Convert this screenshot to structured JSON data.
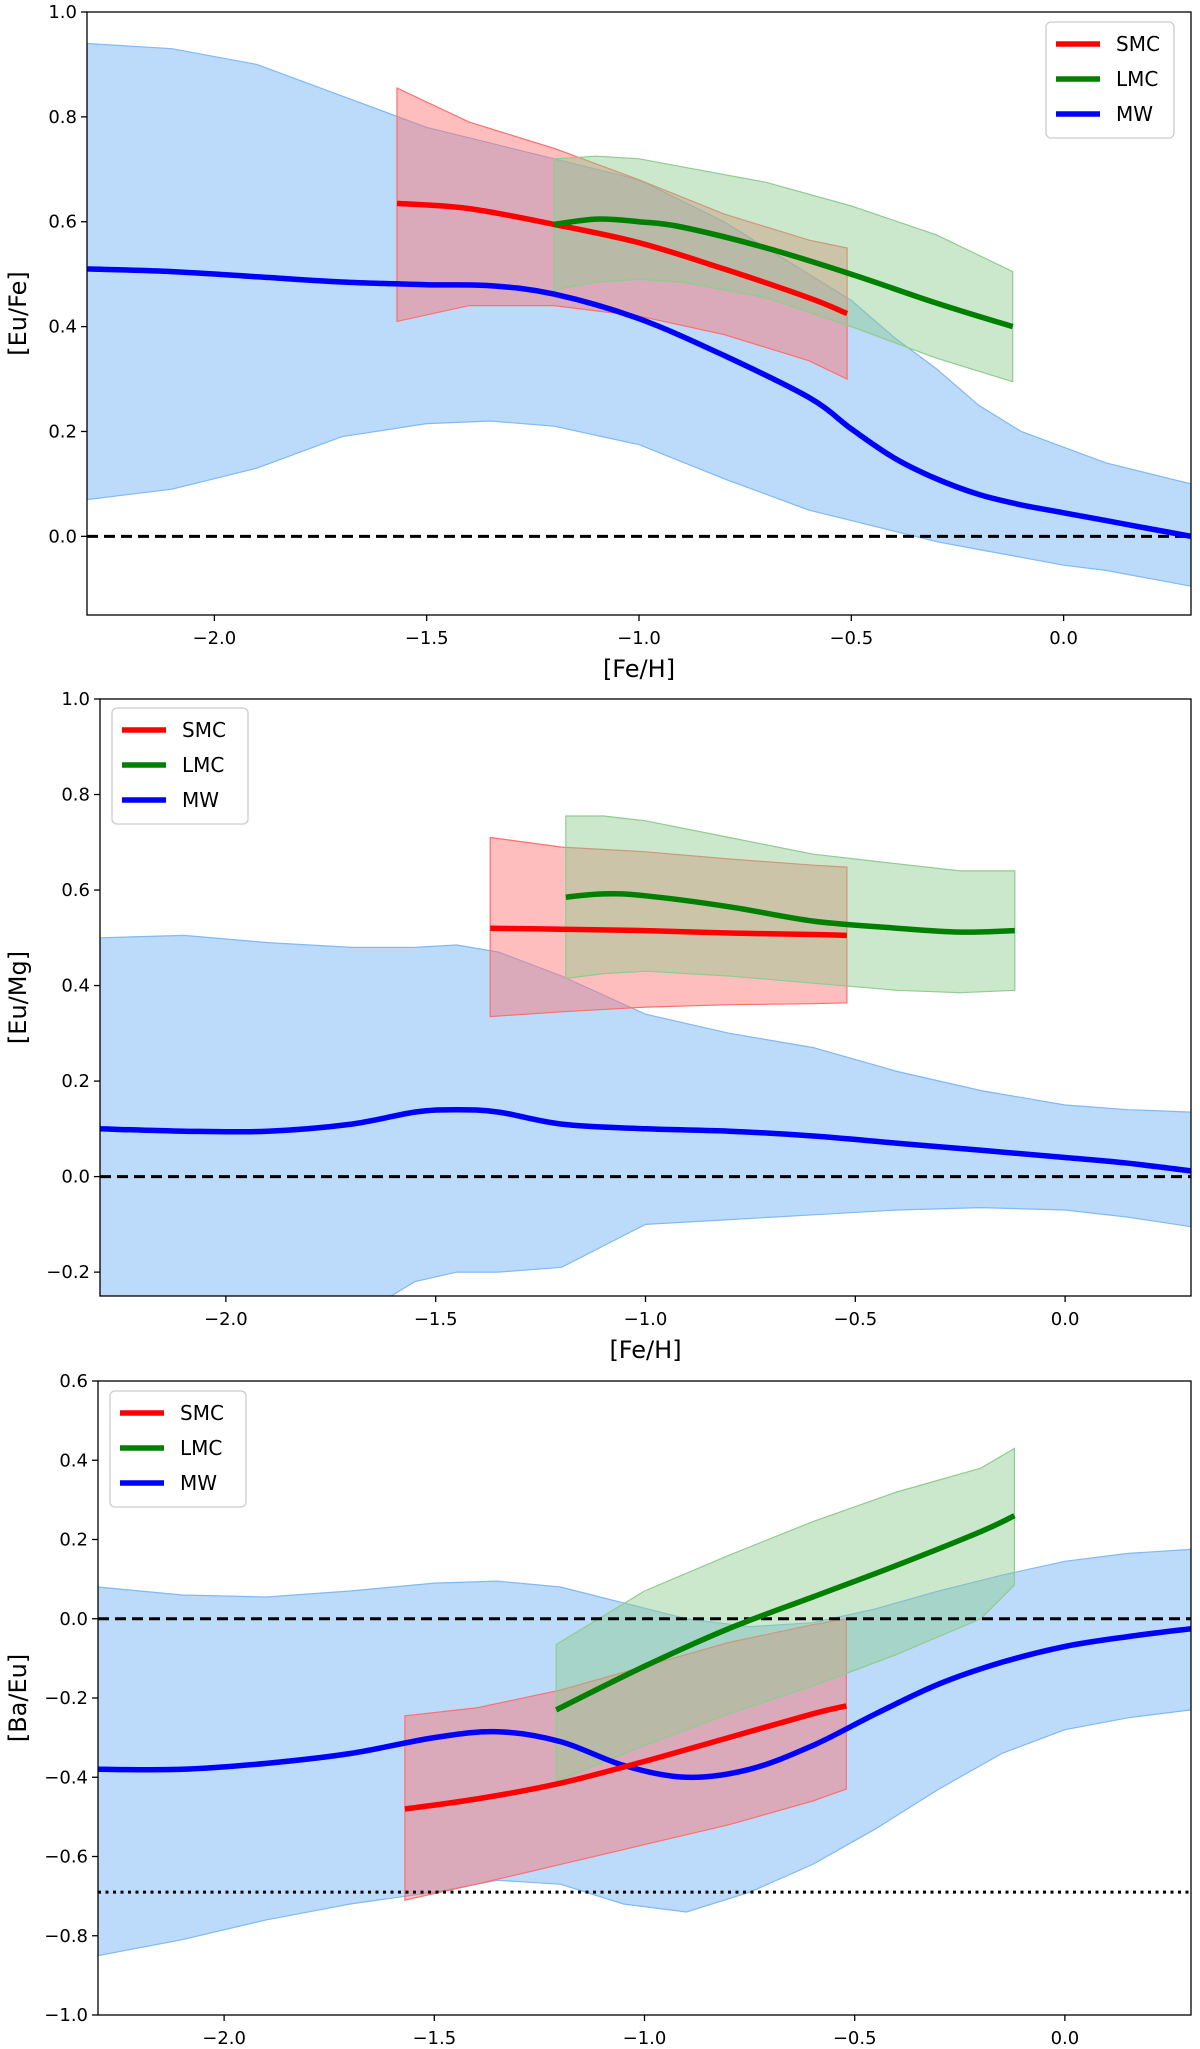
{
  "chart_data": [
    {
      "type": "line",
      "xlabel": "[Fe/H]",
      "ylabel": "[Eu/Fe]",
      "xlim": [
        -2.3,
        0.3
      ],
      "ylim": [
        -0.15,
        1.0
      ],
      "xticks": [
        -2.0,
        -1.5,
        -1.0,
        -0.5,
        0.0
      ],
      "xtick_labels": [
        "−2.0",
        "−1.5",
        "−1.0",
        "−0.5",
        "0.0"
      ],
      "yticks": [
        0.0,
        0.2,
        0.4,
        0.6,
        0.8,
        1.0
      ],
      "ytick_labels": [
        "0.0",
        "0.2",
        "0.4",
        "0.6",
        "0.8",
        "1.0"
      ],
      "legend": {
        "placement": "top-right",
        "entries": [
          "SMC",
          "LMC",
          "MW"
        ]
      },
      "reference_lines": [
        {
          "y": 0.0,
          "style": "dashed"
        }
      ],
      "series": [
        {
          "name": "MW",
          "color": "#0000ff",
          "band_color": "#7fb9f6",
          "x": [
            -2.3,
            -2.1,
            -1.9,
            -1.7,
            -1.5,
            -1.35,
            -1.2,
            -1.0,
            -0.8,
            -0.6,
            -0.5,
            -0.4,
            -0.3,
            -0.2,
            -0.1,
            0.0,
            0.1,
            0.2,
            0.3
          ],
          "y": [
            0.51,
            0.505,
            0.495,
            0.485,
            0.48,
            0.478,
            0.462,
            0.415,
            0.345,
            0.265,
            0.205,
            0.15,
            0.11,
            0.08,
            0.06,
            0.045,
            0.03,
            0.015,
            0.0
          ],
          "lower": [
            0.07,
            0.09,
            0.13,
            0.19,
            0.215,
            0.22,
            0.21,
            0.175,
            0.11,
            0.05,
            0.03,
            0.01,
            -0.01,
            -0.025,
            -0.04,
            -0.055,
            -0.065,
            -0.08,
            -0.095
          ],
          "upper": [
            0.94,
            0.93,
            0.9,
            0.84,
            0.78,
            0.75,
            0.72,
            0.68,
            0.6,
            0.5,
            0.45,
            0.38,
            0.32,
            0.25,
            0.2,
            0.17,
            0.14,
            0.12,
            0.1
          ]
        },
        {
          "name": "SMC",
          "color": "#ff0000",
          "band_color": "#ff6e6e",
          "x": [
            -1.57,
            -1.4,
            -1.2,
            -1.0,
            -0.8,
            -0.6,
            -0.51
          ],
          "y": [
            0.635,
            0.625,
            0.595,
            0.56,
            0.51,
            0.455,
            0.425
          ],
          "lower": [
            0.41,
            0.44,
            0.44,
            0.42,
            0.385,
            0.335,
            0.3
          ],
          "upper": [
            0.855,
            0.79,
            0.74,
            0.68,
            0.615,
            0.565,
            0.55
          ]
        },
        {
          "name": "LMC",
          "color": "#007f00",
          "band_color": "#8fcc8f",
          "x": [
            -1.2,
            -1.1,
            -1.0,
            -0.9,
            -0.7,
            -0.5,
            -0.3,
            -0.12
          ],
          "y": [
            0.595,
            0.605,
            0.6,
            0.59,
            0.55,
            0.5,
            0.445,
            0.4
          ],
          "lower": [
            0.47,
            0.485,
            0.49,
            0.485,
            0.455,
            0.4,
            0.34,
            0.295
          ],
          "upper": [
            0.72,
            0.725,
            0.72,
            0.705,
            0.675,
            0.63,
            0.575,
            0.505
          ]
        }
      ]
    },
    {
      "type": "line",
      "xlabel": "[Fe/H]",
      "ylabel": "[Eu/Mg]",
      "xlim": [
        -2.3,
        0.3
      ],
      "ylim": [
        -0.25,
        1.0
      ],
      "xticks": [
        -2.0,
        -1.5,
        -1.0,
        -0.5,
        0.0
      ],
      "xtick_labels": [
        "−2.0",
        "−1.5",
        "−1.0",
        "−0.5",
        "0.0"
      ],
      "yticks": [
        -0.2,
        0.0,
        0.2,
        0.4,
        0.6,
        0.8,
        1.0
      ],
      "ytick_labels": [
        "−0.2",
        "0.0",
        "0.2",
        "0.4",
        "0.6",
        "0.8",
        "1.0"
      ],
      "legend": {
        "placement": "top-left",
        "entries": [
          "SMC",
          "LMC",
          "MW"
        ]
      },
      "reference_lines": [
        {
          "y": 0.0,
          "style": "dashed"
        }
      ],
      "series": [
        {
          "name": "MW",
          "color": "#0000ff",
          "band_color": "#7fb9f6",
          "x": [
            -2.3,
            -2.1,
            -1.9,
            -1.7,
            -1.55,
            -1.45,
            -1.35,
            -1.2,
            -1.0,
            -0.8,
            -0.6,
            -0.4,
            -0.2,
            0.0,
            0.15,
            0.3
          ],
          "y": [
            0.1,
            0.095,
            0.095,
            0.11,
            0.135,
            0.14,
            0.135,
            0.11,
            0.1,
            0.095,
            0.085,
            0.07,
            0.055,
            0.04,
            0.028,
            0.012
          ],
          "lower": [
            -0.3,
            -0.32,
            -0.32,
            -0.3,
            -0.22,
            -0.2,
            -0.2,
            -0.19,
            -0.1,
            -0.09,
            -0.08,
            -0.07,
            -0.065,
            -0.07,
            -0.085,
            -0.105
          ],
          "upper": [
            0.5,
            0.505,
            0.49,
            0.48,
            0.48,
            0.485,
            0.47,
            0.42,
            0.34,
            0.3,
            0.27,
            0.22,
            0.18,
            0.15,
            0.14,
            0.135
          ]
        },
        {
          "name": "SMC",
          "color": "#ff0000",
          "band_color": "#ff6e6e",
          "x": [
            -1.37,
            -1.2,
            -1.0,
            -0.8,
            -0.6,
            -0.52
          ],
          "y": [
            0.52,
            0.518,
            0.515,
            0.51,
            0.507,
            0.505
          ],
          "lower": [
            0.335,
            0.345,
            0.355,
            0.36,
            0.362,
            0.364
          ],
          "upper": [
            0.71,
            0.69,
            0.68,
            0.665,
            0.652,
            0.648
          ]
        },
        {
          "name": "LMC",
          "color": "#007f00",
          "band_color": "#8fcc8f",
          "x": [
            -1.19,
            -1.1,
            -1.0,
            -0.8,
            -0.6,
            -0.4,
            -0.25,
            -0.12
          ],
          "y": [
            0.585,
            0.592,
            0.588,
            0.565,
            0.535,
            0.52,
            0.512,
            0.515
          ],
          "lower": [
            0.415,
            0.425,
            0.43,
            0.42,
            0.405,
            0.39,
            0.385,
            0.39
          ],
          "upper": [
            0.755,
            0.755,
            0.745,
            0.71,
            0.675,
            0.655,
            0.64,
            0.64
          ]
        }
      ]
    },
    {
      "type": "line",
      "xlabel": "[Fe/H]",
      "ylabel": "[Ba/Eu]",
      "xlim": [
        -2.3,
        0.3
      ],
      "ylim": [
        -1.0,
        0.6
      ],
      "xticks": [
        -2.0,
        -1.5,
        -1.0,
        -0.5,
        0.0
      ],
      "xtick_labels": [
        "−2.0",
        "−1.5",
        "−1.0",
        "−0.5",
        "0.0"
      ],
      "yticks": [
        -1.0,
        -0.8,
        -0.6,
        -0.4,
        -0.2,
        0.0,
        0.2,
        0.4,
        0.6
      ],
      "ytick_labels": [
        "−1.0",
        "−0.8",
        "−0.6",
        "−0.4",
        "−0.2",
        "0.0",
        "0.2",
        "0.4",
        "0.6"
      ],
      "legend": {
        "placement": "top-left",
        "entries": [
          "SMC",
          "LMC",
          "MW"
        ]
      },
      "reference_lines": [
        {
          "y": 0.0,
          "style": "dashed"
        },
        {
          "y": -0.69,
          "style": "dotted"
        }
      ],
      "series": [
        {
          "name": "MW",
          "color": "#0000ff",
          "band_color": "#7fb9f6",
          "x": [
            -2.3,
            -2.1,
            -1.9,
            -1.7,
            -1.5,
            -1.35,
            -1.2,
            -1.05,
            -0.9,
            -0.75,
            -0.6,
            -0.45,
            -0.3,
            -0.15,
            0.0,
            0.15,
            0.3
          ],
          "y": [
            -0.38,
            -0.38,
            -0.365,
            -0.34,
            -0.3,
            -0.285,
            -0.31,
            -0.37,
            -0.4,
            -0.38,
            -0.32,
            -0.24,
            -0.165,
            -0.11,
            -0.07,
            -0.045,
            -0.025
          ],
          "lower": [
            -0.85,
            -0.81,
            -0.76,
            -0.72,
            -0.69,
            -0.66,
            -0.67,
            -0.72,
            -0.74,
            -0.69,
            -0.62,
            -0.53,
            -0.43,
            -0.34,
            -0.28,
            -0.25,
            -0.23
          ],
          "upper": [
            0.08,
            0.06,
            0.055,
            0.07,
            0.09,
            0.095,
            0.08,
            0.04,
            0.0,
            -0.02,
            -0.01,
            0.025,
            0.07,
            0.11,
            0.145,
            0.165,
            0.175
          ]
        },
        {
          "name": "SMC",
          "color": "#ff0000",
          "band_color": "#ff6e6e",
          "x": [
            -1.57,
            -1.4,
            -1.2,
            -1.0,
            -0.8,
            -0.6,
            -0.52
          ],
          "y": [
            -0.48,
            -0.455,
            -0.415,
            -0.36,
            -0.3,
            -0.24,
            -0.22
          ],
          "lower": [
            -0.71,
            -0.67,
            -0.62,
            -0.57,
            -0.52,
            -0.46,
            -0.43
          ],
          "upper": [
            -0.245,
            -0.225,
            -0.18,
            -0.12,
            -0.06,
            -0.015,
            0.0
          ]
        },
        {
          "name": "LMC",
          "color": "#007f00",
          "band_color": "#8fcc8f",
          "x": [
            -1.21,
            -1.0,
            -0.8,
            -0.6,
            -0.4,
            -0.2,
            -0.12
          ],
          "y": [
            -0.23,
            -0.12,
            -0.025,
            0.055,
            0.135,
            0.22,
            0.26
          ],
          "lower": [
            -0.41,
            -0.32,
            -0.24,
            -0.17,
            -0.09,
            0.0,
            0.085
          ],
          "upper": [
            -0.065,
            0.07,
            0.16,
            0.245,
            0.32,
            0.38,
            0.43
          ]
        }
      ]
    }
  ]
}
